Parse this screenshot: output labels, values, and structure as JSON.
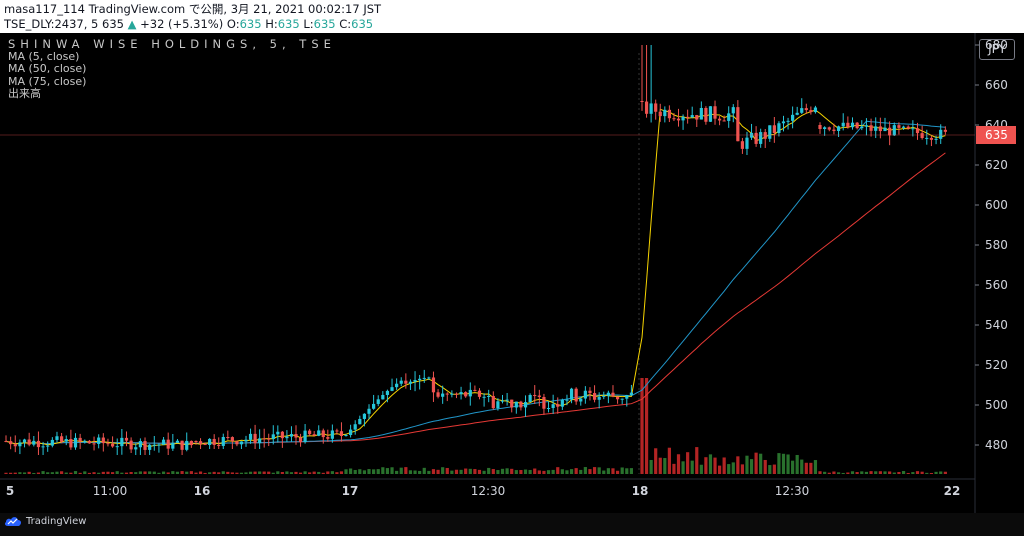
{
  "header": {
    "line1": "masa117_114 TradingView.com で公開, 3月 21, 2021 00:02:17 JST",
    "line2_symbol": "TSE_DLY:2437, 5 635",
    "line2_change": "+32 (+5.31%)",
    "line2_ohlc_o": "O:",
    "line2_ohlc_o_val": "635",
    "line2_ohlc_h": "H:",
    "line2_ohlc_h_val": "635",
    "line2_ohlc_l": "L:",
    "line2_ohlc_l_val": "635",
    "line2_ohlc_c": "C:",
    "line2_ohlc_c_val": "635"
  },
  "legend": {
    "symbol": "SHINWA WISE HOLDINGS, 5, TSE",
    "ma5": "MA (5, close)",
    "ma50": "MA (50, close)",
    "ma75": "MA (75, close)",
    "volume": "出来高"
  },
  "currency": "JPY",
  "footer": {
    "brand": "TradingView"
  },
  "colors": {
    "up": "#26c6da",
    "down": "#ef5350",
    "ma5": "#f5d300",
    "ma50": "#2196c9",
    "ma75": "#e53935",
    "vol_up": "#2e7d32",
    "vol_down": "#c62828",
    "price_tag": "#ef5350",
    "background": "#000000"
  },
  "chart_data": {
    "type": "candlestick",
    "interval": "5",
    "current_price": 635,
    "y_ticks": [
      480,
      500,
      520,
      540,
      560,
      580,
      600,
      620,
      640,
      660,
      680
    ],
    "ylim": [
      465,
      682
    ],
    "x_ticks": [
      "5",
      "11:00",
      "16",
      "17",
      "12:30",
      "18",
      "12:30",
      "22"
    ],
    "segments": [
      {
        "label": "5",
        "open": 482,
        "close": 480,
        "high": 488,
        "low": 475,
        "trend": "flat",
        "vol": "low"
      },
      {
        "label": "16",
        "open": 482,
        "close": 485,
        "high": 492,
        "low": 478,
        "trend": "flat",
        "vol": "low"
      },
      {
        "label": "17",
        "open": 485,
        "close": 502,
        "high": 522,
        "low": 481,
        "trend": "spike_then_hold",
        "vol": "mid"
      },
      {
        "label": "18",
        "open": 652,
        "close": 648,
        "high": 680,
        "low": 625,
        "trend": "gap_up",
        "vol": "high"
      },
      {
        "label": "22",
        "open": 640,
        "close": 635,
        "high": 650,
        "low": 618,
        "trend": "flat",
        "vol": "low"
      }
    ],
    "ma_end": {
      "ma5": 637,
      "ma50": 635,
      "ma75": 613
    }
  }
}
